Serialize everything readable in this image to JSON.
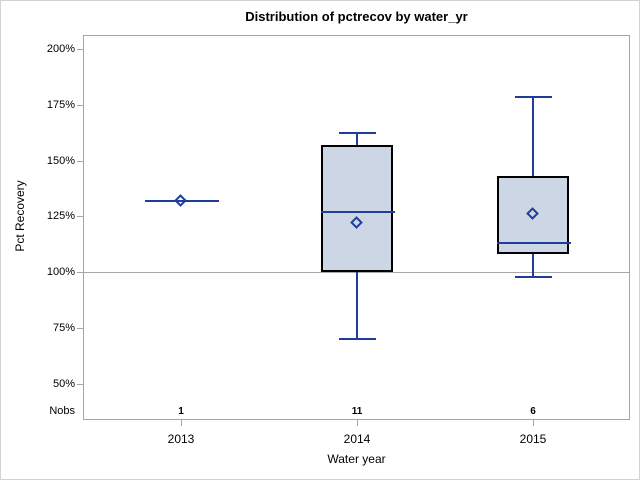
{
  "chart_data": {
    "type": "box",
    "title": "Distribution of pctrecov by water_yr",
    "xlabel": "Water year",
    "ylabel": "Pct Recovery",
    "nobs_label": "Nobs",
    "categories": [
      "2013",
      "2014",
      "2015"
    ],
    "nobs": [
      "1",
      "11",
      "6"
    ],
    "ytick_labels": [
      "200%",
      "175%",
      "150%",
      "125%",
      "100%",
      "75%",
      "50%"
    ],
    "ytick_values": [
      200,
      175,
      150,
      125,
      100,
      75,
      50
    ],
    "reference_line_value": 100,
    "grid": "off",
    "series": [
      {
        "category": "2013",
        "n": 1,
        "min": 132,
        "q1": 132,
        "median": 132,
        "q3": 132,
        "max": 132,
        "mean": 132
      },
      {
        "category": "2014",
        "n": 11,
        "min": 70,
        "q1": 100,
        "median": 127,
        "q3": 157,
        "max": 163,
        "mean": 122
      },
      {
        "category": "2015",
        "n": 6,
        "min": 98,
        "q1": 108,
        "median": 113,
        "q3": 143,
        "max": 179,
        "mean": 126
      }
    ],
    "colors": {
      "box_fill": "#ccd6e4",
      "box_border": "#000000",
      "line": "#1f3d99",
      "frame": "#a6a6a6",
      "reference_line": "#a6a6a6",
      "background": "#ffffff",
      "outer_border": "#d3d3d3",
      "text": "#000000"
    }
  }
}
